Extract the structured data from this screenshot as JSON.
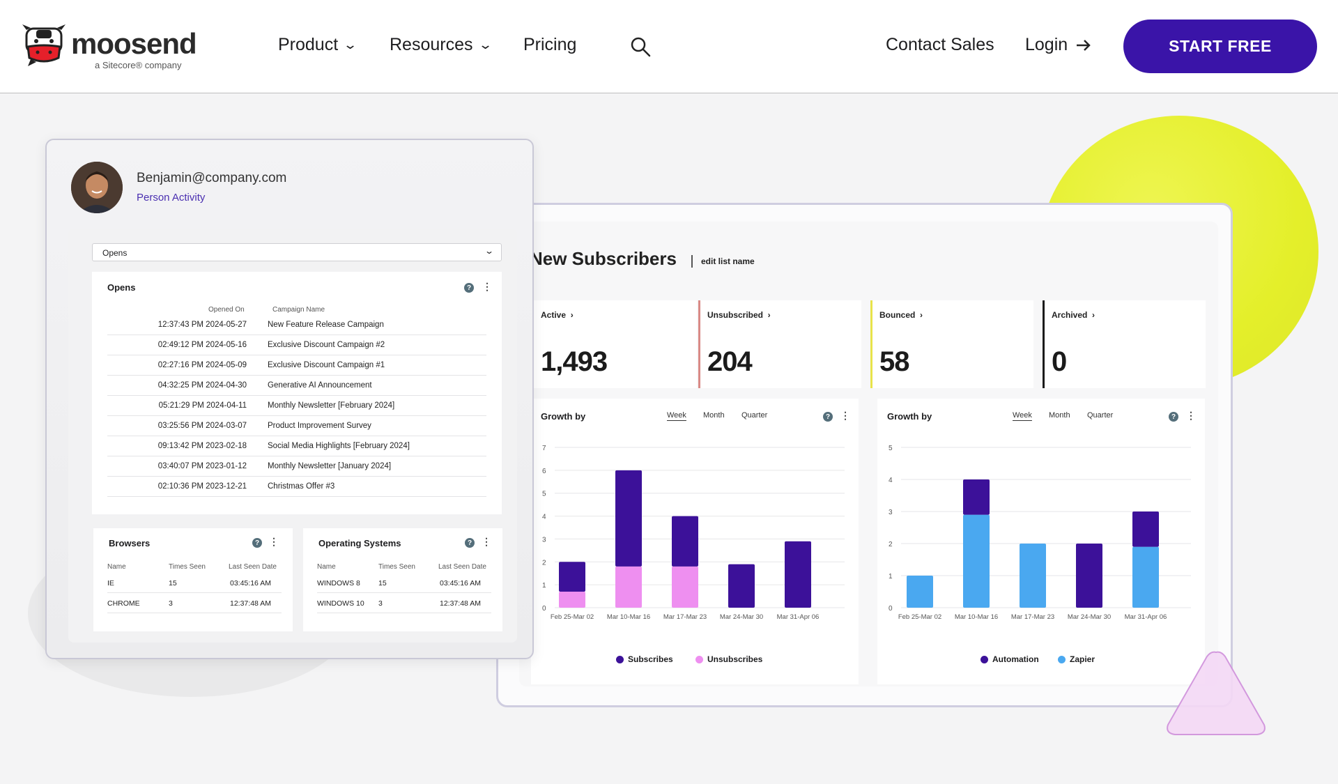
{
  "header": {
    "logo": {
      "word": "moosend",
      "sub": "a Sitecore® company"
    },
    "nav": [
      {
        "label": "Product",
        "has_menu": true
      },
      {
        "label": "Resources",
        "has_menu": true
      },
      {
        "label": "Pricing",
        "has_menu": false
      }
    ],
    "search_icon": "search-icon",
    "contact_label": "Contact Sales",
    "login_label": "Login",
    "start_label": "START FREE",
    "colors": {
      "accent": "#3a14a8"
    }
  },
  "person": {
    "email": "Benjamin@company.com",
    "subtitle": "Person Activity",
    "select_value": "Opens",
    "opens": {
      "title": "Opens",
      "col_date": "Opened On",
      "col_campaign": "Campaign Name",
      "rows": [
        {
          "date": "12:37:43 PM 2024-05-27",
          "campaign": "New Feature Release Campaign"
        },
        {
          "date": "02:49:12 PM 2024-05-16",
          "campaign": "Exclusive Discount Campaign #2"
        },
        {
          "date": "02:27:16 PM 2024-05-09",
          "campaign": "Exclusive Discount Campaign #1"
        },
        {
          "date": "04:32:25 PM 2024-04-30",
          "campaign": "Generative AI Announcement"
        },
        {
          "date": "05:21:29 PM 2024-04-11",
          "campaign": "Monthly Newsletter [February 2024]"
        },
        {
          "date": "03:25:56 PM 2024-03-07",
          "campaign": "Product Improvement Survey"
        },
        {
          "date": "09:13:42 PM 2023-02-18",
          "campaign": "Social Media Highlights [February 2024]"
        },
        {
          "date": "03:40:07 PM 2023-01-12",
          "campaign": "Monthly Newsletter [January 2024]"
        },
        {
          "date": "02:10:36 PM 2023-12-21",
          "campaign": "Christmas Offer #3"
        }
      ]
    },
    "browsers": {
      "title": "Browsers",
      "cols": [
        "Name",
        "Times Seen",
        "Last Seen Date"
      ],
      "rows": [
        {
          "name": "IE",
          "times": "15",
          "last": "03:45:16 AM"
        },
        {
          "name": "CHROME",
          "times": "3",
          "last": "12:37:48 AM"
        }
      ]
    },
    "os": {
      "title": "Operating Systems",
      "cols": [
        "Name",
        "Times Seen",
        "Last Seen Date"
      ],
      "rows": [
        {
          "name": "WINDOWS 8",
          "times": "15",
          "last": "03:45:16 AM"
        },
        {
          "name": "WINDOWS 10",
          "times": "3",
          "last": "12:37:48 AM"
        }
      ]
    }
  },
  "dashboard": {
    "title": "New Subscribers",
    "edit_label": "edit list name",
    "stats": [
      {
        "label": "Active",
        "value": "1,493",
        "color": "#ffffff"
      },
      {
        "label": "Unsubscribed",
        "value": "204",
        "color": "#d98a86"
      },
      {
        "label": "Bounced",
        "value": "58",
        "color": "#e8e34a"
      },
      {
        "label": "Archived",
        "value": "0",
        "color": "#1b1b1b"
      }
    ],
    "tabs": [
      "Week",
      "Month",
      "Quarter"
    ]
  },
  "chart_data": [
    {
      "type": "bar",
      "stacked": true,
      "title": "Growth by",
      "categories": [
        "Feb 25-Mar 02",
        "Mar 10-Mar 16",
        "Mar 17-Mar 23",
        "Mar 24-Mar 30",
        "Mar 31-Apr 06"
      ],
      "series": [
        {
          "name": "Unsubscribes",
          "color": "#ee8ff0",
          "values": [
            0.7,
            1.8,
            1.8,
            0,
            0
          ]
        },
        {
          "name": "Subscribes",
          "color": "#3c1199",
          "values": [
            1.3,
            4.2,
            2.2,
            1.9,
            2.9
          ]
        }
      ],
      "ylim": [
        0,
        7
      ],
      "yticks": [
        0,
        1,
        2,
        3,
        4,
        5,
        6,
        7
      ],
      "grid": true,
      "legend": "bottom"
    },
    {
      "type": "bar",
      "stacked": true,
      "title": "Growth by",
      "categories": [
        "Feb 25-Mar 02",
        "Mar 10-Mar 16",
        "Mar 17-Mar 23",
        "Mar 24-Mar 30",
        "Mar 31-Apr 06"
      ],
      "series": [
        {
          "name": "Zapier",
          "color": "#4aa8f0",
          "values": [
            1,
            2.9,
            2,
            0,
            1.9
          ]
        },
        {
          "name": "Automation",
          "color": "#3c1199",
          "values": [
            0,
            1.1,
            0,
            2,
            1.1
          ]
        }
      ],
      "ylim": [
        0,
        5
      ],
      "yticks": [
        0,
        1,
        2,
        3,
        4,
        5
      ],
      "grid": true,
      "legend": "bottom"
    }
  ]
}
